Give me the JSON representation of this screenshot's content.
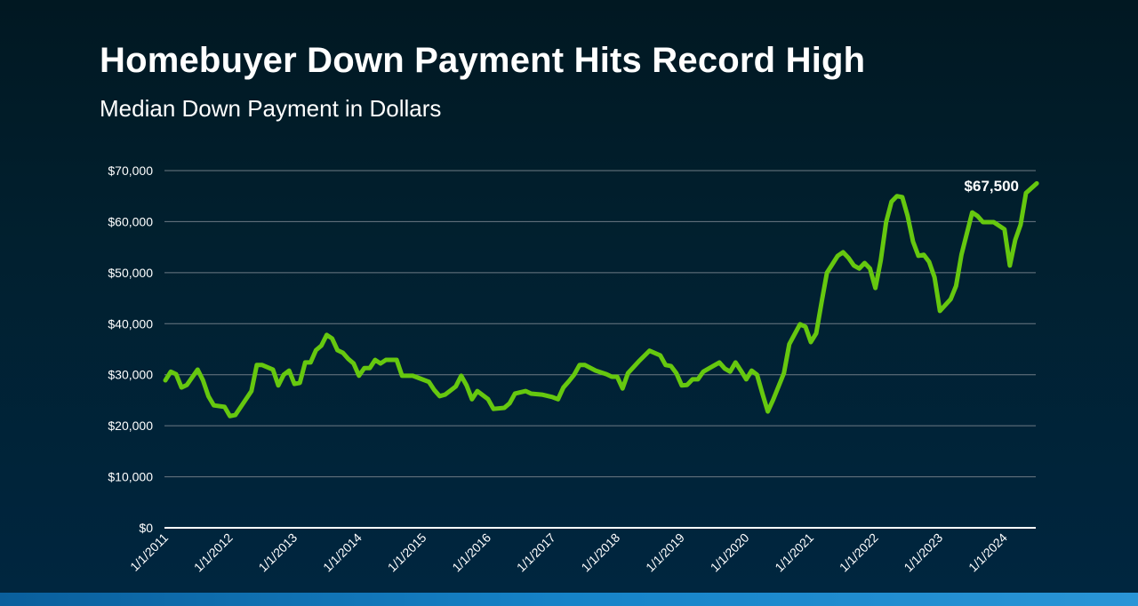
{
  "chart_data": {
    "type": "line",
    "title": "Homebuyer Down Payment Hits Record High",
    "subtitle": "Median Down Payment in Dollars",
    "xlabel": "",
    "ylabel": "",
    "ylim": [
      0,
      70000
    ],
    "yticks": [
      "$0",
      "$10,000",
      "$20,000",
      "$30,000",
      "$40,000",
      "$50,000",
      "$60,000",
      "$70,000"
    ],
    "xticks": [
      "1/1/2011",
      "1/1/2012",
      "1/1/2013",
      "1/1/2014",
      "1/1/2015",
      "1/1/2016",
      "1/1/2017",
      "1/1/2018",
      "1/1/2019",
      "1/1/2020",
      "1/1/2021",
      "1/1/2022",
      "1/1/2023",
      "1/1/2024"
    ],
    "grid": true,
    "line_color": "#66c80f",
    "annotation": "$67,500",
    "points": [
      [
        "2011-01",
        28900
      ],
      [
        "2011-02",
        30600
      ],
      [
        "2011-03",
        30100
      ],
      [
        "2011-04",
        27500
      ],
      [
        "2011-05",
        28000
      ],
      [
        "2011-07",
        31000
      ],
      [
        "2011-08",
        28900
      ],
      [
        "2011-09",
        25800
      ],
      [
        "2011-10",
        24000
      ],
      [
        "2011-12",
        23700
      ],
      [
        "2012-01",
        21900
      ],
      [
        "2012-02",
        22100
      ],
      [
        "2012-05",
        26800
      ],
      [
        "2012-06",
        31900
      ],
      [
        "2012-07",
        31900
      ],
      [
        "2012-09",
        31000
      ],
      [
        "2012-10",
        27900
      ],
      [
        "2012-11",
        30000
      ],
      [
        "2012-12",
        30800
      ],
      [
        "2013-01",
        28200
      ],
      [
        "2013-02",
        28400
      ],
      [
        "2013-03",
        32400
      ],
      [
        "2013-04",
        32400
      ],
      [
        "2013-05",
        34800
      ],
      [
        "2013-06",
        35700
      ],
      [
        "2013-07",
        37800
      ],
      [
        "2013-08",
        37100
      ],
      [
        "2013-09",
        34800
      ],
      [
        "2013-10",
        34300
      ],
      [
        "2013-11",
        33100
      ],
      [
        "2013-12",
        32200
      ],
      [
        "2014-01",
        29800
      ],
      [
        "2014-02",
        31300
      ],
      [
        "2014-03",
        31300
      ],
      [
        "2014-04",
        32900
      ],
      [
        "2014-05",
        32200
      ],
      [
        "2014-06",
        32900
      ],
      [
        "2014-08",
        32900
      ],
      [
        "2014-09",
        29800
      ],
      [
        "2014-11",
        29800
      ],
      [
        "2015-02",
        28600
      ],
      [
        "2015-03",
        27000
      ],
      [
        "2015-04",
        25800
      ],
      [
        "2015-05",
        26100
      ],
      [
        "2015-07",
        27700
      ],
      [
        "2015-08",
        29800
      ],
      [
        "2015-09",
        27900
      ],
      [
        "2015-10",
        25200
      ],
      [
        "2015-11",
        26800
      ],
      [
        "2016-01",
        25200
      ],
      [
        "2016-02",
        23300
      ],
      [
        "2016-04",
        23500
      ],
      [
        "2016-05",
        24400
      ],
      [
        "2016-06",
        26300
      ],
      [
        "2016-08",
        26800
      ],
      [
        "2016-09",
        26300
      ],
      [
        "2016-11",
        26100
      ],
      [
        "2017-01",
        25600
      ],
      [
        "2017-02",
        25200
      ],
      [
        "2017-03",
        27500
      ],
      [
        "2017-04",
        28700
      ],
      [
        "2017-05",
        30000
      ],
      [
        "2017-06",
        31900
      ],
      [
        "2017-07",
        31900
      ],
      [
        "2017-09",
        30800
      ],
      [
        "2017-11",
        30100
      ],
      [
        "2017-12",
        29600
      ],
      [
        "2018-01",
        29600
      ],
      [
        "2018-02",
        27300
      ],
      [
        "2018-03",
        30300
      ],
      [
        "2018-05",
        32600
      ],
      [
        "2018-07",
        34700
      ],
      [
        "2018-09",
        33800
      ],
      [
        "2018-10",
        31900
      ],
      [
        "2018-11",
        31700
      ],
      [
        "2018-12",
        30300
      ],
      [
        "2019-01",
        27900
      ],
      [
        "2019-02",
        28000
      ],
      [
        "2019-03",
        29100
      ],
      [
        "2019-04",
        29100
      ],
      [
        "2019-05",
        30600
      ],
      [
        "2019-06",
        31200
      ],
      [
        "2019-08",
        32400
      ],
      [
        "2019-09",
        31200
      ],
      [
        "2019-10",
        30600
      ],
      [
        "2019-11",
        32400
      ],
      [
        "2019-12",
        30800
      ],
      [
        "2020-01",
        29100
      ],
      [
        "2020-02",
        30800
      ],
      [
        "2020-03",
        30000
      ],
      [
        "2020-04",
        26300
      ],
      [
        "2020-05",
        22800
      ],
      [
        "2020-06",
        25100
      ],
      [
        "2020-08",
        30300
      ],
      [
        "2020-09",
        36000
      ],
      [
        "2020-11",
        39900
      ],
      [
        "2020-12",
        39400
      ],
      [
        "2021-01",
        36400
      ],
      [
        "2021-02",
        38100
      ],
      [
        "2021-03",
        44200
      ],
      [
        "2021-04",
        50000
      ],
      [
        "2021-06",
        53300
      ],
      [
        "2021-07",
        54000
      ],
      [
        "2021-08",
        52900
      ],
      [
        "2021-09",
        51400
      ],
      [
        "2021-10",
        50800
      ],
      [
        "2021-11",
        51900
      ],
      [
        "2021-12",
        50800
      ],
      [
        "2022-01",
        47000
      ],
      [
        "2022-02",
        52400
      ],
      [
        "2022-03",
        59900
      ],
      [
        "2022-04",
        63900
      ],
      [
        "2022-05",
        65000
      ],
      [
        "2022-06",
        64800
      ],
      [
        "2022-07",
        61100
      ],
      [
        "2022-08",
        56100
      ],
      [
        "2022-09",
        53300
      ],
      [
        "2022-10",
        53500
      ],
      [
        "2022-11",
        52100
      ],
      [
        "2022-12",
        49100
      ],
      [
        "2023-01",
        42500
      ],
      [
        "2023-03",
        44800
      ],
      [
        "2023-04",
        47400
      ],
      [
        "2023-05",
        53500
      ],
      [
        "2023-07",
        61800
      ],
      [
        "2023-08",
        61100
      ],
      [
        "2023-09",
        59900
      ],
      [
        "2023-11",
        59900
      ],
      [
        "2024-01",
        58500
      ],
      [
        "2024-02",
        51400
      ],
      [
        "2024-03",
        56400
      ],
      [
        "2024-04",
        59400
      ],
      [
        "2024-05",
        65600
      ],
      [
        "2024-07",
        67500
      ]
    ]
  }
}
